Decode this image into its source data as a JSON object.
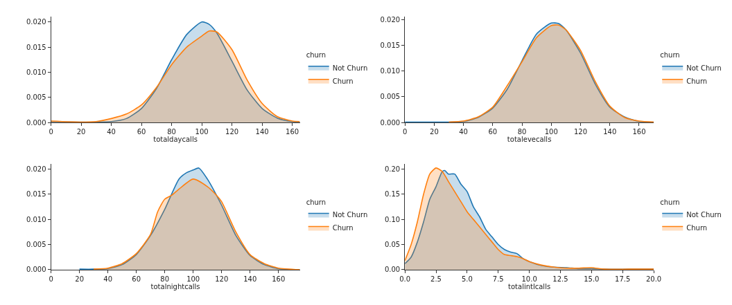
{
  "chart_data": [
    {
      "type": "area",
      "xlabel": "totaldaycalls",
      "legend_title": "churn",
      "legend": "right",
      "xlim": [
        0,
        165
      ],
      "ylim": [
        0,
        0.021
      ],
      "xticks": [
        0,
        20,
        40,
        60,
        80,
        100,
        120,
        140,
        160
      ],
      "yticks": [
        {
          "value": 0,
          "label": "0.000"
        },
        {
          "value": 0.005,
          "label": "0.005"
        },
        {
          "value": 0.01,
          "label": "0.010"
        },
        {
          "value": 0.015,
          "label": "0.015"
        },
        {
          "value": 0.02,
          "label": "0.020"
        }
      ],
      "series": [
        {
          "name": "Not Churn",
          "color": "#1f77b4",
          "x": [
            0,
            20,
            30,
            40,
            50,
            60,
            70,
            80,
            90,
            100,
            105,
            110,
            120,
            130,
            140,
            150,
            160,
            165
          ],
          "values": [
            0.0002,
            0.0001,
            0.0001,
            0.0002,
            0.0008,
            0.0028,
            0.0068,
            0.0125,
            0.0175,
            0.02,
            0.0195,
            0.0178,
            0.0122,
            0.0065,
            0.0028,
            0.0009,
            0.0002,
            0.0001
          ]
        },
        {
          "name": "Churn",
          "color": "#ff7f0e",
          "x": [
            0,
            20,
            30,
            40,
            50,
            60,
            70,
            80,
            90,
            100,
            105,
            110,
            120,
            130,
            140,
            150,
            160,
            165
          ],
          "values": [
            0.0003,
            0.0001,
            0.0002,
            0.0008,
            0.0017,
            0.0035,
            0.007,
            0.0115,
            0.015,
            0.0172,
            0.0182,
            0.018,
            0.0145,
            0.0085,
            0.0038,
            0.0012,
            0.0003,
            0.0002
          ]
        }
      ]
    },
    {
      "type": "area",
      "xlabel": "totalevecalls",
      "legend_title": "churn",
      "legend": "right",
      "xlim": [
        0,
        170
      ],
      "ylim": [
        0,
        0.0205
      ],
      "xticks": [
        0,
        20,
        40,
        60,
        80,
        100,
        120,
        140,
        160
      ],
      "yticks": [
        {
          "value": 0,
          "label": "0.000"
        },
        {
          "value": 0.005,
          "label": "0.005"
        },
        {
          "value": 0.01,
          "label": "0.010"
        },
        {
          "value": 0.015,
          "label": "0.015"
        },
        {
          "value": 0.02,
          "label": "0.020"
        }
      ],
      "series": [
        {
          "name": "Not Churn",
          "color": "#1f77b4",
          "x": [
            0,
            20,
            30,
            40,
            50,
            60,
            70,
            80,
            90,
            100,
            105,
            110,
            120,
            130,
            140,
            150,
            160,
            170
          ],
          "values": [
            0.0001,
            0.0001,
            0.0001,
            0.0002,
            0.001,
            0.0028,
            0.0065,
            0.012,
            0.0172,
            0.0193,
            0.0192,
            0.018,
            0.0135,
            0.0075,
            0.003,
            0.0011,
            0.0002,
            0.0001
          ]
        },
        {
          "name": "Churn",
          "color": "#ff7f0e",
          "x": [
            30,
            40,
            50,
            60,
            70,
            80,
            90,
            100,
            105,
            110,
            120,
            130,
            140,
            150,
            160,
            170
          ],
          "values": [
            0.0001,
            0.0003,
            0.0011,
            0.003,
            0.0072,
            0.0118,
            0.0165,
            0.0188,
            0.0189,
            0.018,
            0.014,
            0.008,
            0.0032,
            0.001,
            0.0003,
            0.0001
          ]
        }
      ]
    },
    {
      "type": "area",
      "xlabel": "totalnightcalls",
      "legend_title": "churn",
      "legend": "right",
      "xlim": [
        0,
        175
      ],
      "ylim": [
        0,
        0.021
      ],
      "xticks": [
        0,
        20,
        40,
        60,
        80,
        100,
        120,
        140,
        160
      ],
      "yticks": [
        {
          "value": 0,
          "label": "0.000"
        },
        {
          "value": 0.005,
          "label": "0.005"
        },
        {
          "value": 0.01,
          "label": "0.010"
        },
        {
          "value": 0.015,
          "label": "0.015"
        },
        {
          "value": 0.02,
          "label": "0.020"
        }
      ],
      "series": [
        {
          "name": "Not Churn",
          "color": "#1f77b4",
          "x": [
            20,
            30,
            40,
            50,
            60,
            70,
            80,
            90,
            95,
            100,
            104,
            110,
            120,
            130,
            140,
            150,
            160,
            175
          ],
          "values": [
            0.0001,
            0.0001,
            0.0002,
            0.001,
            0.003,
            0.0068,
            0.012,
            0.018,
            0.0192,
            0.0198,
            0.0202,
            0.018,
            0.0128,
            0.0068,
            0.0028,
            0.001,
            0.0002,
            0.0
          ]
        },
        {
          "name": "Churn",
          "color": "#ff7f0e",
          "x": [
            30,
            40,
            50,
            60,
            70,
            75,
            80,
            85,
            90,
            100,
            110,
            115,
            120,
            130,
            140,
            150,
            160,
            175
          ],
          "values": [
            0.0001,
            0.0003,
            0.0012,
            0.0032,
            0.007,
            0.0115,
            0.014,
            0.0148,
            0.016,
            0.018,
            0.0165,
            0.0152,
            0.0135,
            0.0075,
            0.003,
            0.0012,
            0.0003,
            0.0
          ]
        }
      ]
    },
    {
      "type": "area",
      "xlabel": "totalintlcalls",
      "legend_title": "churn",
      "legend": "right",
      "xlim": [
        0,
        20
      ],
      "ylim": [
        0,
        0.21
      ],
      "xticks": [
        {
          "value": 0,
          "label": "0.0"
        },
        {
          "value": 2.5,
          "label": "2.5"
        },
        {
          "value": 5,
          "label": "5.0"
        },
        {
          "value": 7.5,
          "label": "7.5"
        },
        {
          "value": 10,
          "label": "10.0"
        },
        {
          "value": 12.5,
          "label": "12.5"
        },
        {
          "value": 15,
          "label": "15.0"
        },
        {
          "value": 17.5,
          "label": "17.5"
        },
        {
          "value": 20,
          "label": "20.0"
        }
      ],
      "yticks": [
        {
          "value": 0,
          "label": "0.00"
        },
        {
          "value": 0.05,
          "label": "0.05"
        },
        {
          "value": 0.1,
          "label": "0.10"
        },
        {
          "value": 0.15,
          "label": "0.15"
        },
        {
          "value": 0.2,
          "label": "0.20"
        }
      ],
      "series": [
        {
          "name": "Not Churn",
          "color": "#1f77b4",
          "x": [
            0,
            0.5,
            1,
            1.5,
            2,
            2.5,
            3,
            3.2,
            3.5,
            4,
            4.5,
            5,
            5.5,
            6,
            6.5,
            7,
            7.5,
            8,
            8.5,
            9,
            9.5,
            10,
            11,
            12,
            13,
            14,
            15,
            16,
            18,
            20
          ],
          "values": [
            0.012,
            0.025,
            0.055,
            0.095,
            0.14,
            0.165,
            0.195,
            0.197,
            0.19,
            0.19,
            0.17,
            0.155,
            0.125,
            0.105,
            0.08,
            0.065,
            0.05,
            0.04,
            0.035,
            0.032,
            0.022,
            0.016,
            0.008,
            0.005,
            0.004,
            0.002,
            0.002,
            0.001,
            0.001,
            0.001
          ]
        },
        {
          "name": "Churn",
          "color": "#ff7f0e",
          "x": [
            0,
            0.5,
            1,
            1.5,
            2,
            2.5,
            3,
            3.5,
            4,
            4.5,
            5,
            5.5,
            6,
            6.5,
            7,
            7.5,
            8,
            8.5,
            9,
            9.5,
            10,
            11,
            12,
            13,
            14,
            15,
            16,
            18,
            20
          ],
          "values": [
            0.018,
            0.05,
            0.095,
            0.15,
            0.19,
            0.202,
            0.195,
            0.175,
            0.155,
            0.135,
            0.115,
            0.1,
            0.085,
            0.07,
            0.055,
            0.04,
            0.03,
            0.028,
            0.026,
            0.022,
            0.016,
            0.009,
            0.005,
            0.003,
            0.003,
            0.004,
            0.001,
            0.001,
            0.001
          ]
        }
      ]
    }
  ]
}
